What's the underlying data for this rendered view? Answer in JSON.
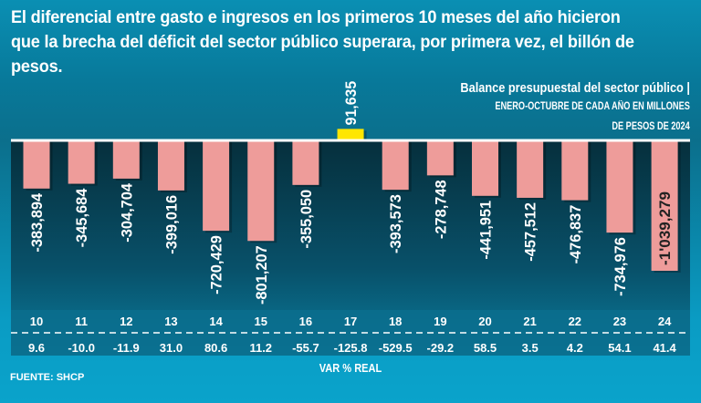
{
  "header": {
    "title": "El diferencial entre gasto e ingresos en los primeros 10 meses del año hicieron que la brecha del déficit del sector público superara, por primera vez, el billón de pesos.",
    "subtitle": "Balance presupuestal del sector público |",
    "note_line1": "ENERO-OCTUBRE DE CADA AÑO EN MILLONES",
    "note_line2": "DE PESOS DE 2024"
  },
  "chart_data": {
    "type": "bar",
    "title": "Balance presupuestal del sector público",
    "ylabel": "Millones de pesos de 2024",
    "categories": [
      "10",
      "11",
      "12",
      "13",
      "14",
      "15",
      "16",
      "17",
      "18",
      "19",
      "20",
      "21",
      "22",
      "23",
      "24"
    ],
    "values": [
      -383894,
      -345684,
      -304704,
      -399016,
      -720429,
      -801207,
      -355050,
      91635,
      -393573,
      -278748,
      -441951,
      -457512,
      -476837,
      -734976,
      -1039279
    ],
    "value_labels": [
      "-383,894",
      "-345,684",
      "-304,704",
      "-399,016",
      "-720,429",
      "-801,207",
      "-355,050",
      "91,635",
      "-393,573",
      "-278,748",
      "-441,951",
      "-457,512",
      "-476,837",
      "-734,976",
      "-1'039,279"
    ],
    "var_real": [
      "9.6",
      "-10.0",
      "-11.9",
      "31.0",
      "80.6",
      "11.2",
      "-55.7",
      "-125.8",
      "-529.5",
      "-29.2",
      "58.5",
      "3.5",
      "4.2",
      "54.1",
      "41.4"
    ],
    "var_label": "VAR % REAL",
    "colors": {
      "negative": "#ee9c9a",
      "positive": "#ffe600"
    }
  },
  "footer": {
    "source": "FUENTE: SHCP"
  }
}
